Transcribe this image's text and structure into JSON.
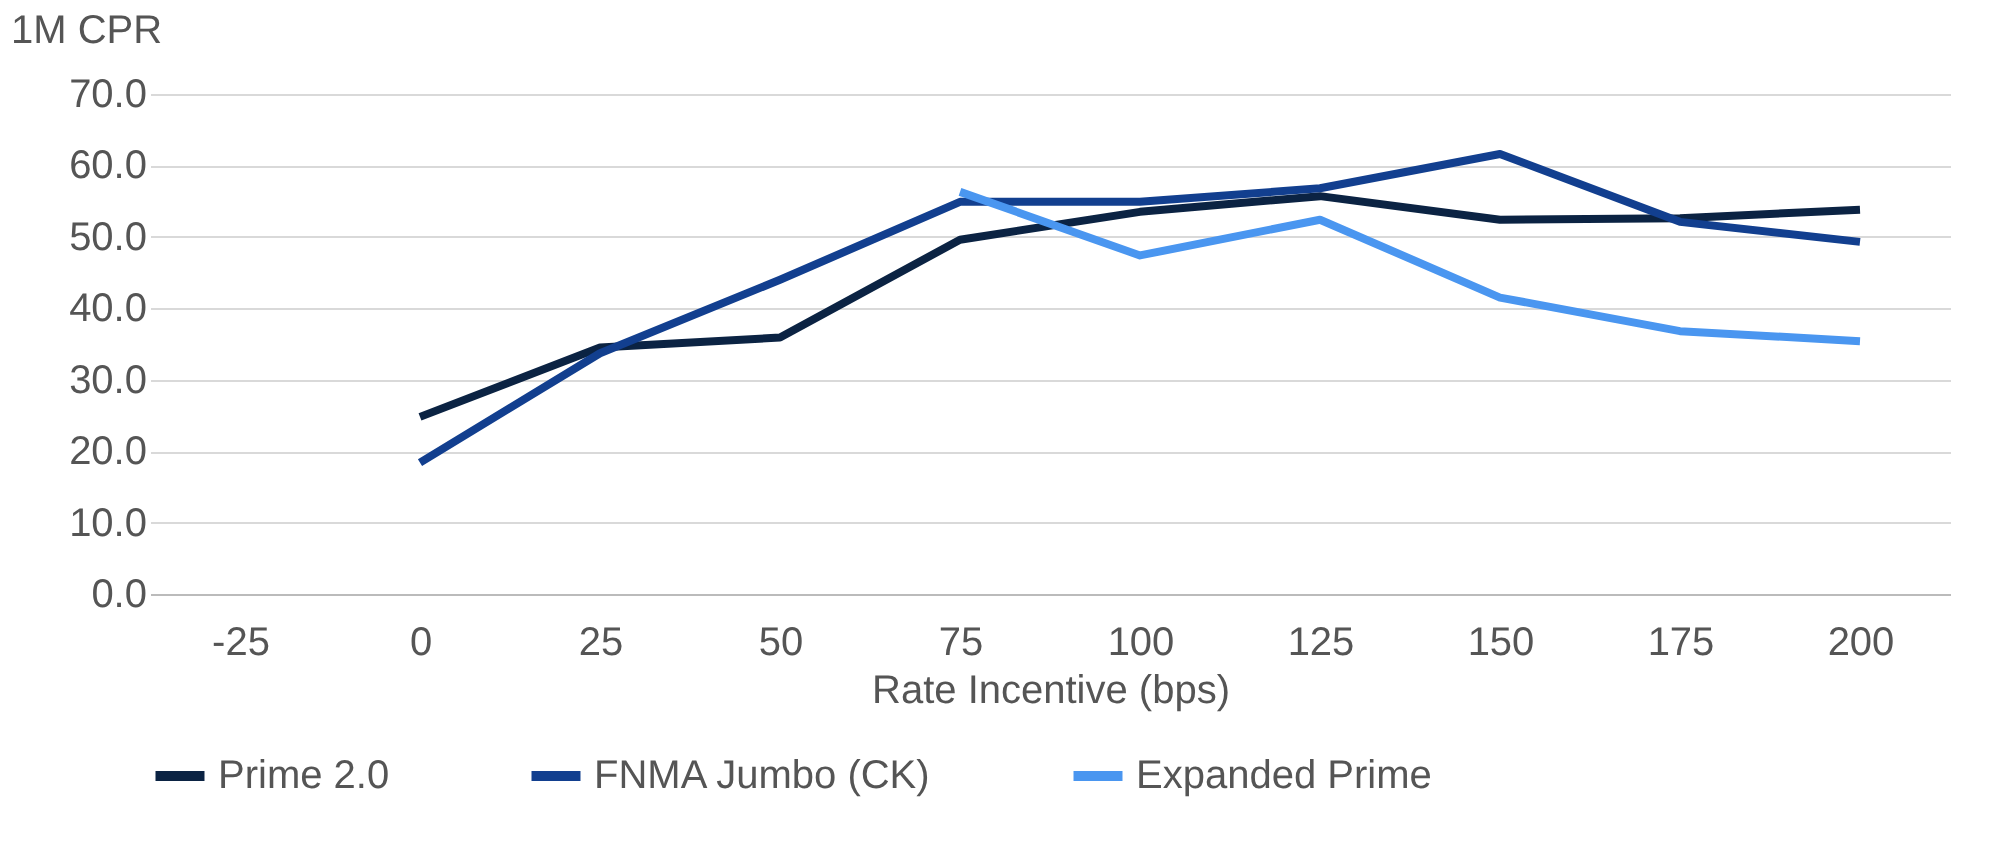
{
  "chart_data": {
    "type": "line",
    "xlabel": "Rate Incentive (bps)",
    "ylabel": "1M CPR",
    "categories": [
      "-25",
      "0",
      "25",
      "50",
      "75",
      "100",
      "125",
      "150",
      "175",
      "200"
    ],
    "series": [
      {
        "name": "Prime 2.0",
        "color": "#0b2343",
        "values": [
          null,
          24.8,
          34.5,
          35.9,
          49.6,
          53.5,
          55.7,
          52.4,
          52.6,
          53.8
        ]
      },
      {
        "name": "FNMA Jumbo (CK)",
        "color": "#123f8f",
        "values": [
          null,
          18.4,
          33.7,
          44.0,
          54.9,
          54.9,
          56.8,
          61.6,
          52.1,
          49.3
        ]
      },
      {
        "name": "Expanded Prime",
        "color": "#4a96f0",
        "values": [
          null,
          null,
          null,
          null,
          56.3,
          47.4,
          52.4,
          41.5,
          36.8,
          35.4
        ]
      }
    ],
    "ylim": [
      0,
      70
    ],
    "yticks": [
      {
        "value": 0,
        "label": "0.0"
      },
      {
        "value": 10,
        "label": "10.0"
      },
      {
        "value": 20,
        "label": "20.0"
      },
      {
        "value": 30,
        "label": "30.0"
      },
      {
        "value": 40,
        "label": "40.0"
      },
      {
        "value": 50,
        "label": "50.0"
      },
      {
        "value": 60,
        "label": "60.0"
      },
      {
        "value": 70,
        "label": "70.0"
      }
    ],
    "grid": "y",
    "legend": "bottom",
    "marker": "none",
    "line_style": "solid"
  }
}
